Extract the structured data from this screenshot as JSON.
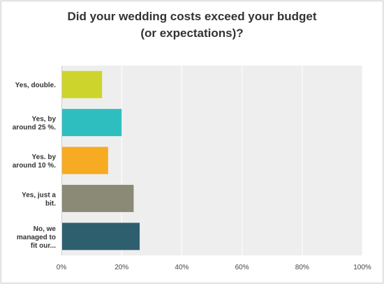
{
  "chart_data": {
    "type": "bar",
    "orientation": "horizontal",
    "title_lines": [
      "Did your wedding costs exceed your budget",
      "(or expectations)?"
    ],
    "categories": [
      [
        "Yes, double."
      ],
      [
        "Yes, by",
        "around 25 %."
      ],
      [
        "Yes. by",
        "around 10 %."
      ],
      [
        "Yes, just a",
        "bit."
      ],
      [
        "No, we",
        "managed to",
        "fit our..."
      ]
    ],
    "values": [
      13.5,
      20,
      15.5,
      24,
      26
    ],
    "colors": [
      "#cdd42b",
      "#2fbec0",
      "#f6ab22",
      "#8a8a76",
      "#2e5f6f"
    ],
    "xlim": [
      0,
      100
    ],
    "xticks": [
      "0%",
      "20%",
      "40%",
      "60%",
      "80%",
      "100%"
    ],
    "unit": "%",
    "grid": true,
    "plot_background": "#eeeeee"
  }
}
